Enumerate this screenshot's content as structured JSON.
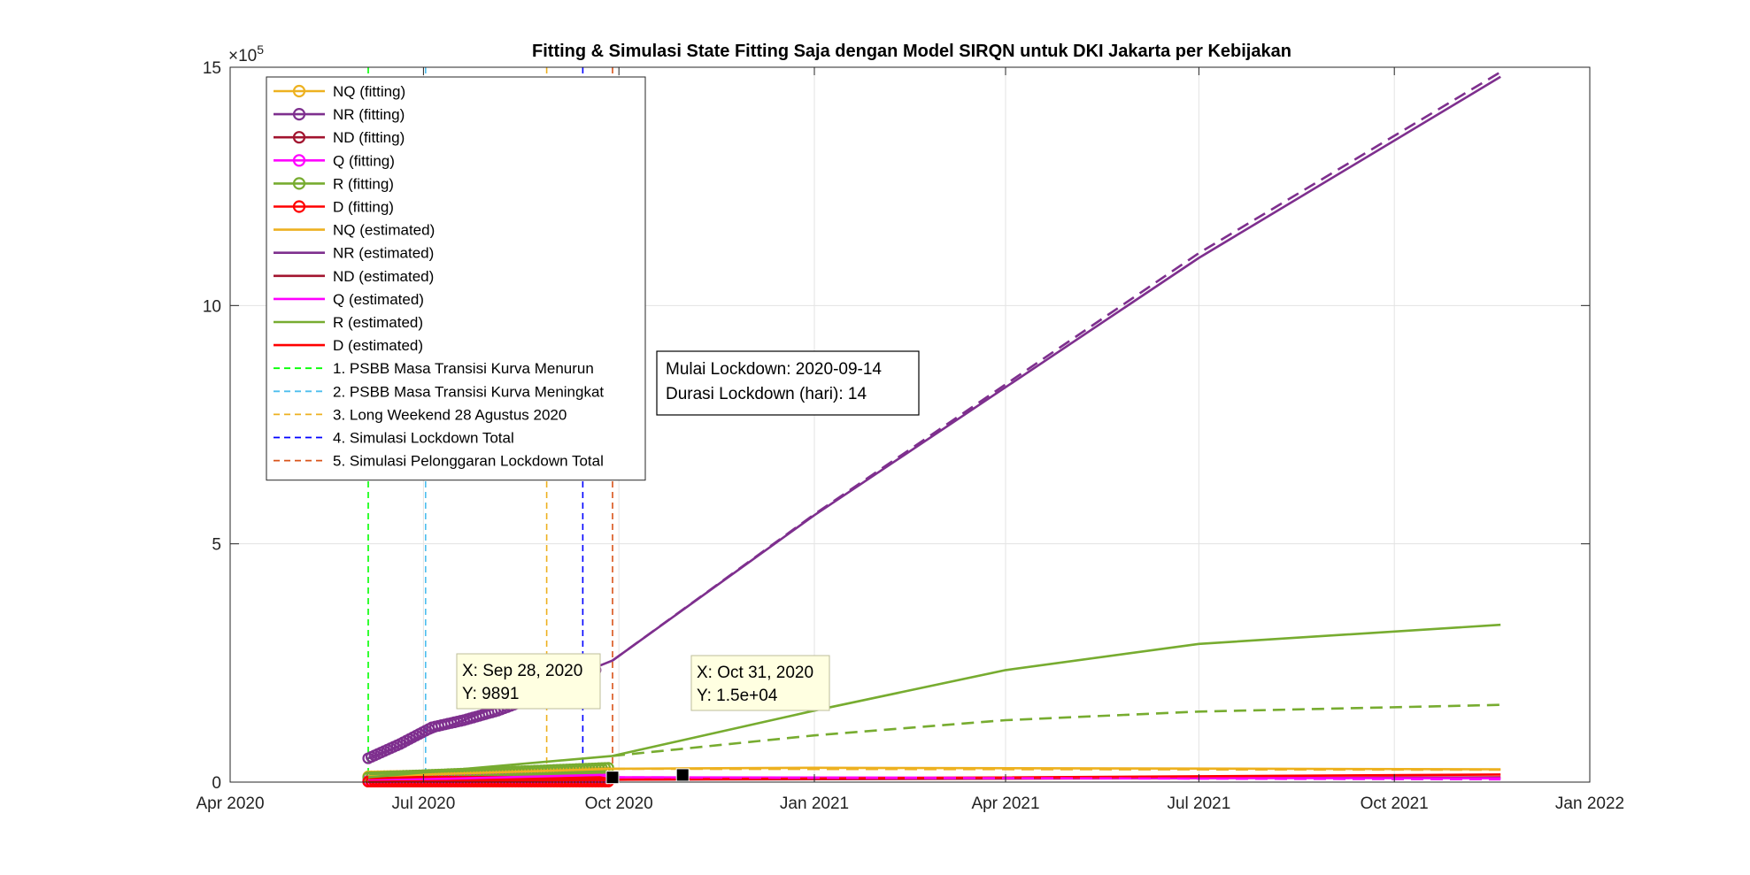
{
  "chart_data": {
    "type": "line",
    "title": "Fitting & Simulasi State Fitting Saja dengan Model SIRQN untuk DKI Jakarta per Kebijakan",
    "xlabel": "",
    "ylabel": "",
    "y_exponent_label": "×10",
    "y_exponent_power": "5",
    "xlim": [
      "2020-04-01",
      "2022-01-01"
    ],
    "ylim": [
      0,
      15
    ],
    "grid": true,
    "legend_position": "top-left",
    "x_ticks": [
      {
        "date": "2020-04-01",
        "label": "Apr 2020"
      },
      {
        "date": "2020-07-01",
        "label": "Jul 2020"
      },
      {
        "date": "2020-10-01",
        "label": "Oct 2020"
      },
      {
        "date": "2021-01-01",
        "label": "Jan 2021"
      },
      {
        "date": "2021-04-01",
        "label": "Apr 2021"
      },
      {
        "date": "2021-07-01",
        "label": "Jul 2021"
      },
      {
        "date": "2021-10-01",
        "label": "Oct 2021"
      },
      {
        "date": "2022-01-01",
        "label": "Jan 2022"
      }
    ],
    "y_ticks": [
      {
        "value": 0,
        "label": "0"
      },
      {
        "value": 5,
        "label": "5"
      },
      {
        "value": 10,
        "label": "10"
      },
      {
        "value": 15,
        "label": "15"
      }
    ],
    "series": [
      {
        "name": "NQ (fitting)",
        "color": "#EDB120",
        "style": "marker",
        "points": [
          [
            "2020-06-05",
            0.12
          ],
          [
            "2020-09-26",
            0.2
          ]
        ]
      },
      {
        "name": "NR (fitting)",
        "color": "#7E2F8E",
        "style": "marker",
        "points": [
          [
            "2020-06-05",
            0.5
          ],
          [
            "2020-06-20",
            0.8
          ],
          [
            "2020-07-05",
            1.15
          ],
          [
            "2020-07-20",
            1.3
          ],
          [
            "2020-08-05",
            1.5
          ],
          [
            "2020-08-20",
            1.75
          ],
          [
            "2020-09-05",
            2.05
          ],
          [
            "2020-09-20",
            2.35
          ]
        ]
      },
      {
        "name": "ND (fitting)",
        "color": "#A2142F",
        "style": "marker",
        "points": [
          [
            "2020-06-05",
            0.01
          ],
          [
            "2020-09-26",
            0.02
          ]
        ]
      },
      {
        "name": "Q (fitting)",
        "color": "#FF00FF",
        "style": "marker",
        "points": [
          [
            "2020-06-05",
            0.03
          ],
          [
            "2020-09-26",
            0.1
          ]
        ]
      },
      {
        "name": "R (fitting)",
        "color": "#77AC30",
        "style": "marker",
        "points": [
          [
            "2020-06-05",
            0.1
          ],
          [
            "2020-09-26",
            0.3
          ]
        ]
      },
      {
        "name": "D (fitting)",
        "color": "#FF0000",
        "style": "marker",
        "points": [
          [
            "2020-06-05",
            0.01
          ],
          [
            "2020-09-26",
            0.01
          ]
        ]
      },
      {
        "name": "NQ (estimated)",
        "color": "#EDB120",
        "style": "solid",
        "points": [
          [
            "2020-06-05",
            0.12
          ],
          [
            "2020-09-28",
            0.28
          ],
          [
            "2021-01-01",
            0.3
          ],
          [
            "2021-11-20",
            0.27
          ]
        ]
      },
      {
        "name": "NR (estimated)",
        "color": "#7E2F8E",
        "style": "solid",
        "points": [
          [
            "2020-06-05",
            0.5
          ],
          [
            "2020-09-28",
            2.55
          ],
          [
            "2021-01-01",
            5.6
          ],
          [
            "2021-07-01",
            11.0
          ],
          [
            "2021-11-20",
            14.8
          ]
        ]
      },
      {
        "name": "ND (estimated)",
        "color": "#A2142F",
        "style": "solid",
        "points": [
          [
            "2020-06-05",
            0.01
          ],
          [
            "2020-09-28",
            0.05
          ],
          [
            "2021-11-20",
            0.1
          ]
        ]
      },
      {
        "name": "Q (estimated)",
        "color": "#FF00FF",
        "style": "solid",
        "points": [
          [
            "2020-06-05",
            0.03
          ],
          [
            "2020-09-22",
            0.15
          ],
          [
            "2020-09-28",
            0.1
          ],
          [
            "2021-11-20",
            0.08
          ]
        ]
      },
      {
        "name": "R (estimated)",
        "color": "#77AC30",
        "style": "solid",
        "points": [
          [
            "2020-06-05",
            0.1
          ],
          [
            "2020-09-28",
            0.55
          ],
          [
            "2021-01-01",
            1.5
          ],
          [
            "2021-04-01",
            2.35
          ],
          [
            "2021-07-01",
            2.9
          ],
          [
            "2021-11-20",
            3.3
          ]
        ]
      },
      {
        "name": "D (estimated)",
        "color": "#FF0000",
        "style": "solid",
        "points": [
          [
            "2020-06-05",
            0.01
          ],
          [
            "2020-09-28",
            0.05
          ],
          [
            "2021-11-20",
            0.16
          ]
        ]
      },
      {
        "name": "",
        "color": "#7E2F8E",
        "style": "dashed",
        "points": [
          [
            "2020-09-28",
            2.55
          ],
          [
            "2021-01-01",
            5.62
          ],
          [
            "2021-07-01",
            11.1
          ],
          [
            "2021-11-20",
            14.9
          ]
        ]
      },
      {
        "name": "",
        "color": "#77AC30",
        "style": "dashed",
        "points": [
          [
            "2020-09-28",
            0.55
          ],
          [
            "2021-01-01",
            0.98
          ],
          [
            "2021-04-01",
            1.3
          ],
          [
            "2021-07-01",
            1.48
          ],
          [
            "2021-11-20",
            1.62
          ]
        ]
      },
      {
        "name": "",
        "color": "#EDB120",
        "style": "dashed",
        "points": [
          [
            "2020-09-28",
            0.28
          ],
          [
            "2021-11-20",
            0.26
          ]
        ]
      },
      {
        "name": "",
        "color": "#FF00FF",
        "style": "dashed",
        "points": [
          [
            "2020-09-28",
            0.1
          ],
          [
            "2021-11-20",
            0.06
          ]
        ]
      }
    ],
    "policy_lines": [
      {
        "label": "1. PSBB Masa Transisi Kurva Menurun",
        "date": "2020-06-05",
        "color": "#00FF00"
      },
      {
        "label": "2. PSBB Masa Transisi Kurva Meningkat",
        "date": "2020-07-02",
        "color": "#4DBEEE"
      },
      {
        "label": "3. Long Weekend 28 Agustus 2020",
        "date": "2020-08-28",
        "color": "#EDB120"
      },
      {
        "label": "4. Simulasi Lockdown Total",
        "date": "2020-09-14",
        "color": "#0000FF"
      },
      {
        "label": "5. Simulasi Pelonggaran Lockdown Total",
        "date": "2020-09-28",
        "color": "#D95319"
      }
    ],
    "annotation_box": {
      "lines": [
        "Mulai Lockdown: 2020-09-14",
        "Durasi Lockdown (hari): 14"
      ]
    },
    "datatips": [
      {
        "x_label": "X: Sep 28, 2020",
        "y_label": "Y: 9891",
        "date": "2020-09-28",
        "value": 0.09891
      },
      {
        "x_label": "X: Oct 31, 2020",
        "y_label": "Y: 1.5e+04",
        "date": "2020-10-31",
        "value": 0.15
      }
    ]
  }
}
